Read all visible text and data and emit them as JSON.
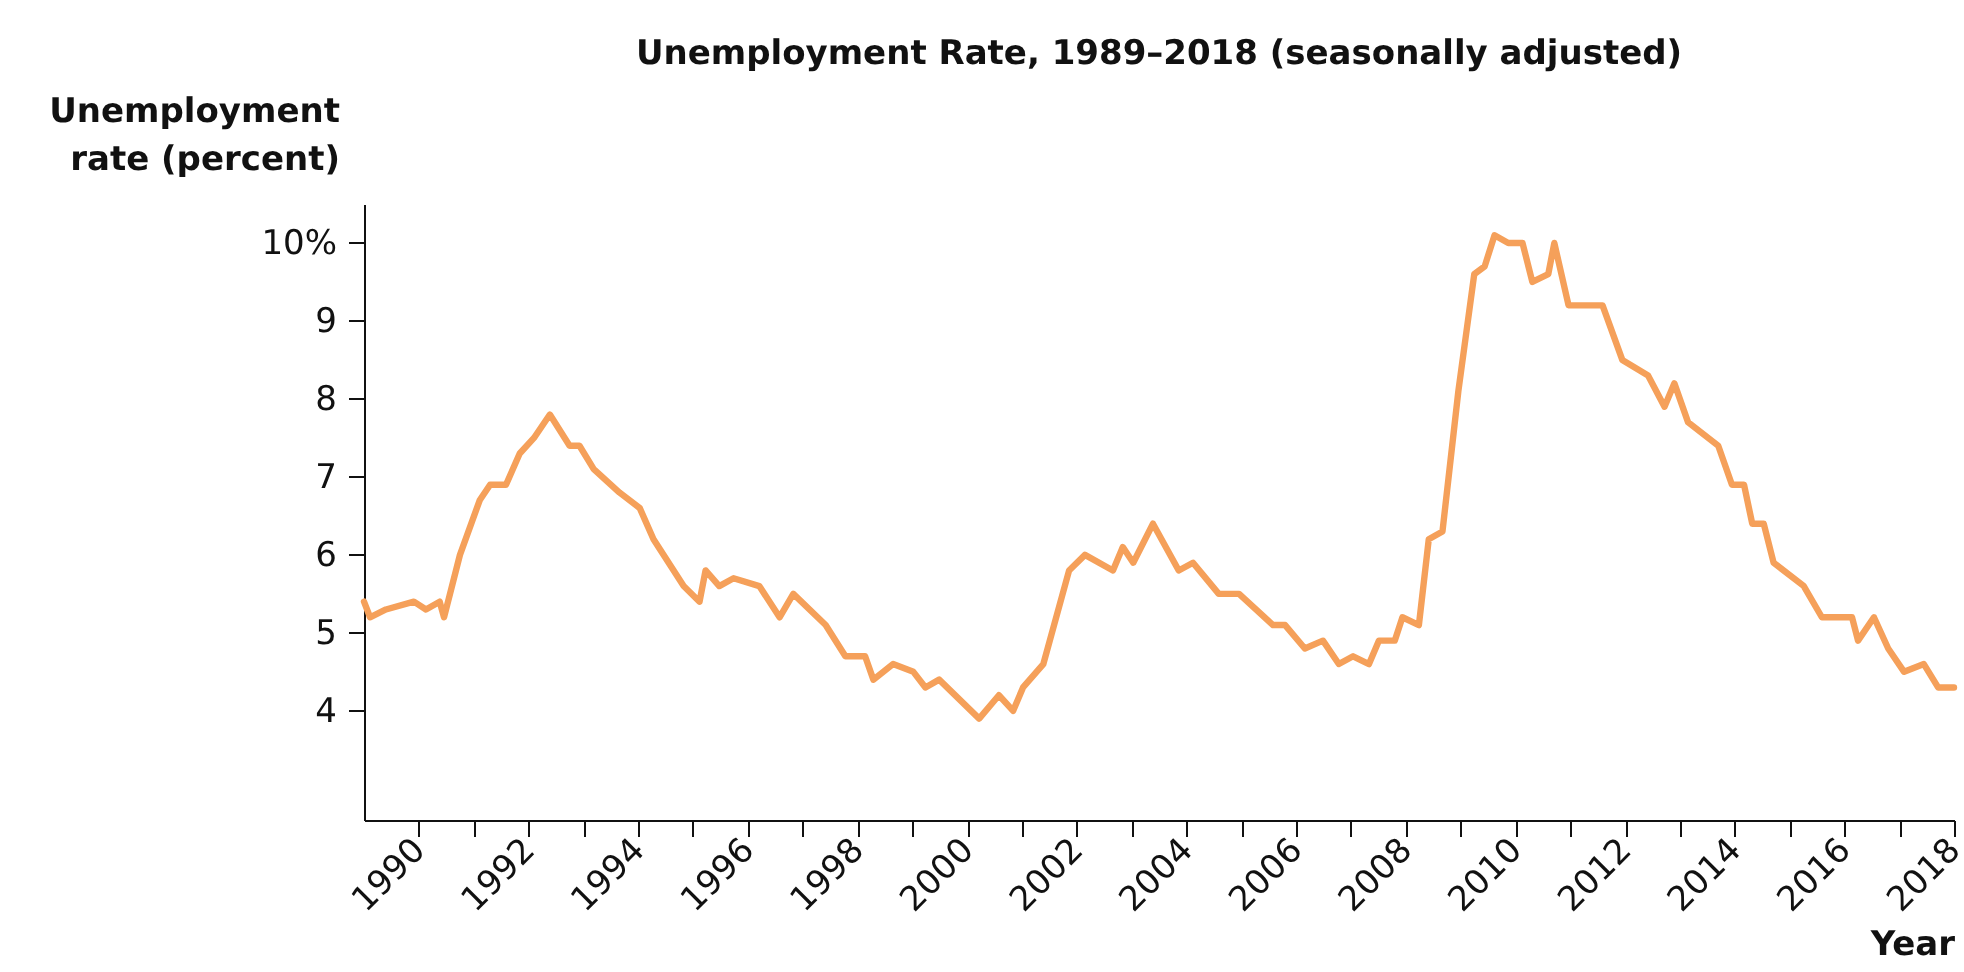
{
  "chart_data": {
    "type": "line",
    "title": "Unemployment Rate, 1989–2018 (seasonally adjusted)",
    "xlabel": "Year",
    "ylabel": "Unemployment rate (percent)",
    "x": [
      1989.0,
      1989.11,
      1989.4,
      1989.91,
      1990.13,
      1990.38,
      1990.46,
      1990.75,
      1991.11,
      1991.3,
      1991.59,
      1991.84,
      1992.1,
      1992.39,
      1992.75,
      1992.93,
      1993.19,
      1993.66,
      1994.03,
      1994.28,
      1994.83,
      1995.12,
      1995.23,
      1995.48,
      1995.74,
      1996.21,
      1996.58,
      1996.83,
      1997.42,
      1997.78,
      1998.14,
      1998.29,
      1998.65,
      1999.02,
      1999.24,
      1999.49,
      2000.22,
      2000.58,
      2000.84,
      2001.02,
      2001.39,
      2001.86,
      2002.15,
      2002.66,
      2002.84,
      2003.03,
      2003.39,
      2003.86,
      2004.12,
      2004.59,
      2004.96,
      2005.58,
      2005.8,
      2006.16,
      2006.49,
      2006.78,
      2007.04,
      2007.33,
      2007.51,
      2007.8,
      2007.94,
      2008.24,
      2008.42,
      2008.67,
      2008.96,
      2009.25,
      2009.44,
      2009.62,
      2009.87,
      2010.13,
      2010.31,
      2010.6,
      2010.71,
      2010.97,
      2011.33,
      2011.59,
      2011.95,
      2012.42,
      2012.72,
      2012.9,
      2013.15,
      2013.7,
      2013.95,
      2014.17,
      2014.32,
      2014.53,
      2014.71,
      2015.26,
      2015.59,
      2015.89,
      2016.14,
      2016.25,
      2016.54,
      2016.8,
      2017.09,
      2017.45,
      2017.71,
      2018.0
    ],
    "series": [
      {
        "color": "#f5a05a",
        "values": [
          5.4,
          5.2,
          5.3,
          5.4,
          5.3,
          5.4,
          5.2,
          6.0,
          6.7,
          6.9,
          6.9,
          7.3,
          7.5,
          7.8,
          7.4,
          7.4,
          7.1,
          6.8,
          6.6,
          6.2,
          5.6,
          5.4,
          5.8,
          5.6,
          5.7,
          5.6,
          5.2,
          5.5,
          5.1,
          4.7,
          4.7,
          4.4,
          4.6,
          4.5,
          4.3,
          4.4,
          3.9,
          4.2,
          4.0,
          4.3,
          4.6,
          5.8,
          6.0,
          5.8,
          6.1,
          5.9,
          6.4,
          5.8,
          5.9,
          5.5,
          5.5,
          5.1,
          5.1,
          4.8,
          4.9,
          4.6,
          4.7,
          4.6,
          4.9,
          4.9,
          5.2,
          5.1,
          6.2,
          6.3,
          8.1,
          9.6,
          9.7,
          10.1,
          10.0,
          10.0,
          9.5,
          9.6,
          10.0,
          9.2,
          9.2,
          9.2,
          8.5,
          8.3,
          7.9,
          8.2,
          7.7,
          7.4,
          6.9,
          6.9,
          6.4,
          6.4,
          5.9,
          5.6,
          5.2,
          5.2,
          5.2,
          4.9,
          5.2,
          4.8,
          4.5,
          4.6,
          4.3,
          4.3
        ]
      }
    ],
    "xlim": [
      1989,
      2018
    ],
    "ylim": [
      2.6,
      10.5
    ],
    "xticks": [
      1990,
      {
        "value": 1991,
        "label": null
      },
      1992,
      {
        "value": 1993,
        "label": null
      },
      1994,
      {
        "value": 1995,
        "label": null
      },
      1996,
      {
        "value": 1997,
        "label": null
      },
      1998,
      {
        "value": 1999,
        "label": null
      },
      2000,
      {
        "value": 2001,
        "label": null
      },
      2002,
      {
        "value": 2003,
        "label": null
      },
      2004,
      {
        "value": 2005,
        "label": null
      },
      2006,
      {
        "value": 2007,
        "label": null
      },
      2008,
      {
        "value": 2009,
        "label": null
      },
      2010,
      {
        "value": 2011,
        "label": null
      },
      2012,
      {
        "value": 2013,
        "label": null
      },
      2014,
      {
        "value": 2015,
        "label": null
      },
      2016,
      {
        "value": 2017,
        "label": null
      },
      2018
    ],
    "yticks": [
      4,
      5,
      6,
      7,
      8,
      9,
      {
        "value": 10,
        "label": "10%"
      }
    ]
  }
}
